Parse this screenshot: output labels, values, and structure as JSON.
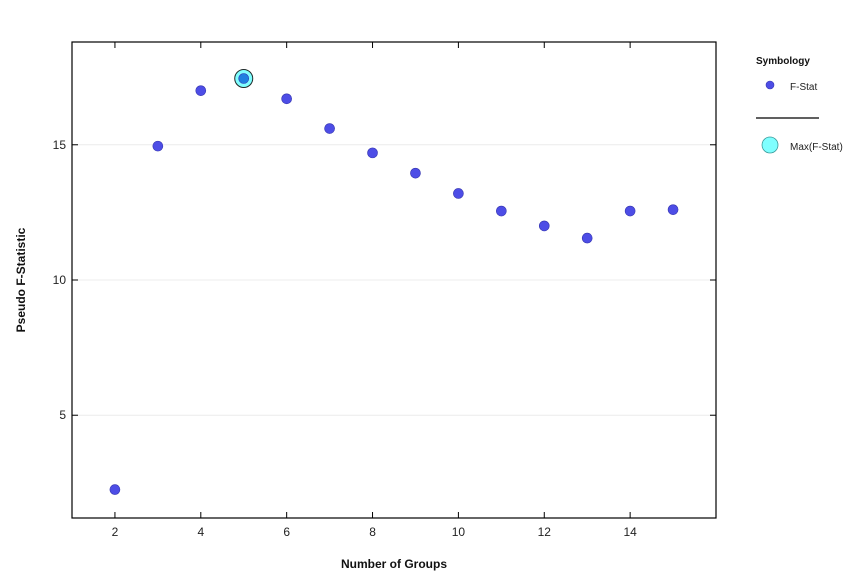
{
  "chart_data": {
    "type": "scatter",
    "title": "",
    "xlabel": "Number of Groups",
    "ylabel": "Pseudo F-Statistic",
    "xlim": [
      1,
      16
    ],
    "ylim": [
      1.2,
      18.8
    ],
    "xticks": [
      2,
      4,
      6,
      8,
      10,
      12,
      14
    ],
    "yticks": [
      5,
      10,
      15
    ],
    "grid": "horizontal",
    "legend_position": "right",
    "series": [
      {
        "name": "F-Stat",
        "color": "#4d4de6",
        "x": [
          2,
          3,
          4,
          5,
          6,
          7,
          8,
          9,
          10,
          11,
          12,
          13,
          14,
          15
        ],
        "y": [
          2.25,
          14.95,
          17.0,
          17.45,
          16.7,
          15.6,
          14.7,
          13.95,
          13.2,
          12.55,
          12.0,
          11.55,
          12.55,
          12.6
        ]
      },
      {
        "name": "Max(F-Stat)",
        "color": "#7fffff",
        "x": [
          5
        ],
        "y": [
          17.45
        ]
      }
    ]
  },
  "legend": {
    "title": "Symbology",
    "items": [
      "F-Stat",
      "Max(F-Stat)"
    ]
  }
}
